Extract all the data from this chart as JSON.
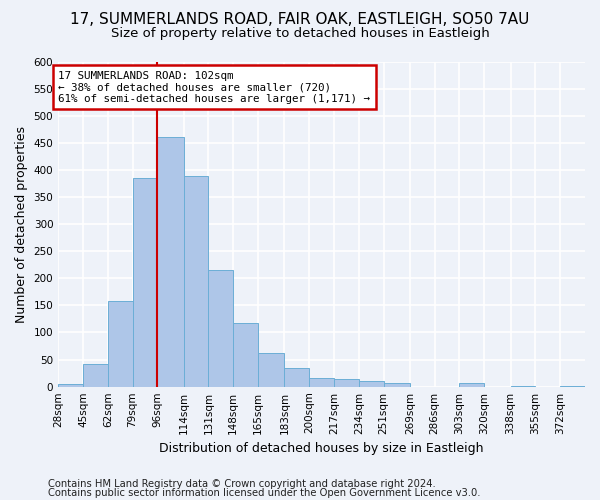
{
  "title1": "17, SUMMERLANDS ROAD, FAIR OAK, EASTLEIGH, SO50 7AU",
  "title2": "Size of property relative to detached houses in Eastleigh",
  "xlabel": "Distribution of detached houses by size in Eastleigh",
  "ylabel": "Number of detached properties",
  "footnote1": "Contains HM Land Registry data © Crown copyright and database right 2024.",
  "footnote2": "Contains public sector information licensed under the Open Government Licence v3.0.",
  "bin_labels": [
    "28sqm",
    "45sqm",
    "62sqm",
    "79sqm",
    "96sqm",
    "114sqm",
    "131sqm",
    "148sqm",
    "165sqm",
    "183sqm",
    "200sqm",
    "217sqm",
    "234sqm",
    "251sqm",
    "269sqm",
    "286sqm",
    "303sqm",
    "320sqm",
    "338sqm",
    "355sqm",
    "372sqm"
  ],
  "bar_values": [
    5,
    42,
    158,
    385,
    460,
    388,
    215,
    118,
    62,
    34,
    16,
    15,
    10,
    6,
    0,
    0,
    6,
    0,
    2,
    0,
    2
  ],
  "bar_color": "#aec6e8",
  "bar_edgecolor": "#6baed6",
  "vline_color": "#cc0000",
  "property_sqm": 102,
  "annotation_line1": "17 SUMMERLANDS ROAD: 102sqm",
  "annotation_line2": "← 38% of detached houses are smaller (720)",
  "annotation_line3": "61% of semi-detached houses are larger (1,171) →",
  "annotation_box_color": "#cc0000",
  "ylim": [
    0,
    600
  ],
  "yticks": [
    0,
    50,
    100,
    150,
    200,
    250,
    300,
    350,
    400,
    450,
    500,
    550,
    600
  ],
  "bin_width": 17,
  "background_color": "#eef2f9",
  "grid_color": "#ffffff",
  "title1_fontsize": 11,
  "title2_fontsize": 9.5,
  "axis_label_fontsize": 9,
  "tick_fontsize": 7.5,
  "footnote_fontsize": 7.2
}
